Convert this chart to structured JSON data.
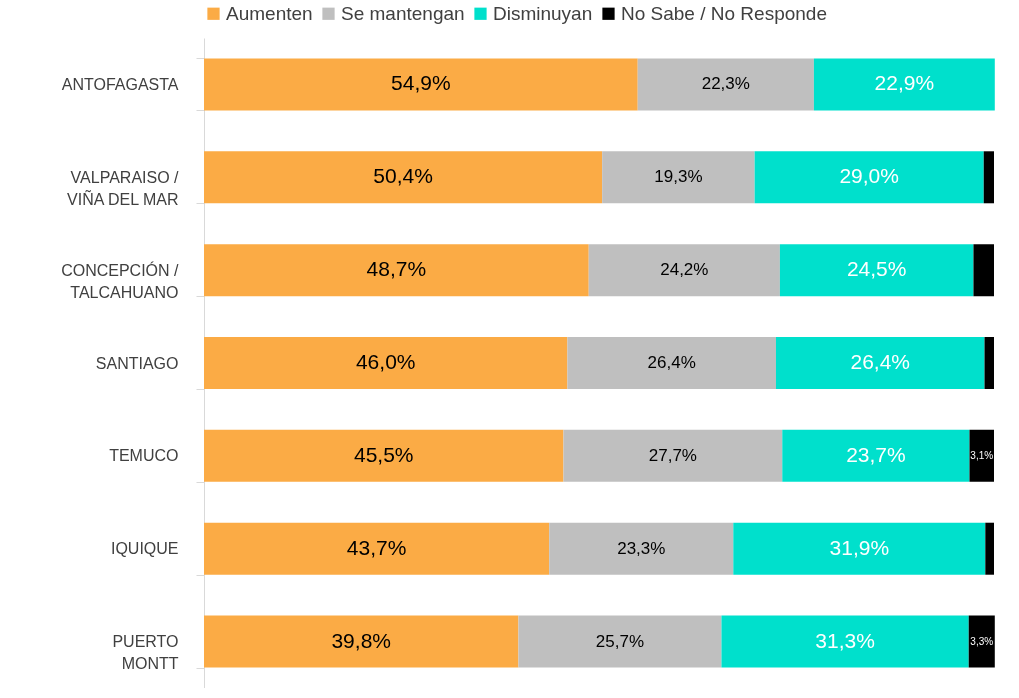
{
  "chart_data": {
    "type": "bar",
    "orientation": "horizontal",
    "stacked": true,
    "legend": "top",
    "tick_labels": "y",
    "xlim": [
      0,
      100
    ],
    "categories": [
      "ANTOFAGASTA",
      "VALPARAISO / VIÑA DEL MAR",
      "CONCEPCIÓN / TALCAHUANO",
      "SANTIAGO",
      "TEMUCO",
      "IQUIQUE",
      "PUERTO MONTT"
    ],
    "series": [
      {
        "name": "Aumenten",
        "color": "#fbab45",
        "values": [
          54.9,
          50.4,
          48.7,
          46.0,
          45.5,
          43.7,
          39.8
        ],
        "value_labels": [
          "54,9%",
          "50,4%",
          "48,7%",
          "46,0%",
          "45,5%",
          "43,7%",
          "39,8%"
        ]
      },
      {
        "name": "Se mantengan",
        "color": "#bfbfbf",
        "values": [
          22.3,
          19.3,
          24.2,
          26.4,
          27.7,
          23.3,
          25.7
        ],
        "value_labels": [
          "22,3%",
          "19,3%",
          "24,2%",
          "26,4%",
          "27,7%",
          "23,3%",
          "25,7%"
        ]
      },
      {
        "name": "Disminuyan",
        "color": "#00e0cc",
        "values": [
          22.9,
          29.0,
          24.5,
          26.4,
          23.7,
          31.9,
          31.3
        ],
        "value_labels": [
          "22,9%",
          "29,0%",
          "24,5%",
          "26,4%",
          "23,7%",
          "31,9%",
          "31,3%"
        ]
      },
      {
        "name": "No Sabe / No Responde",
        "color": "#000000",
        "values": [
          0,
          1.3,
          2.6,
          1.2,
          3.1,
          1.1,
          3.3
        ],
        "value_labels": [
          null,
          null,
          null,
          null,
          "3,1%",
          null,
          "3,3%"
        ]
      }
    ]
  }
}
